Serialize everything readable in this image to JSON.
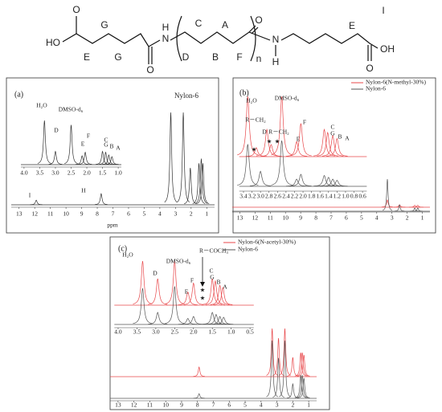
{
  "structure": {
    "labels": [
      "HO",
      "O",
      "G",
      "E",
      "G",
      "O",
      "N",
      "H",
      "C",
      "A",
      "D",
      "B",
      "F",
      "O",
      "n",
      "N",
      "H",
      "E",
      "I",
      "OH",
      "O"
    ]
  },
  "chart_data": [
    {
      "type": "nmr",
      "title": "(a)",
      "xlabel": "ppm",
      "xlim": [
        13.5,
        0.5
      ],
      "xticks": [
        13,
        12,
        11,
        10,
        9,
        8,
        7,
        6,
        5,
        4,
        3,
        2,
        1
      ],
      "ylim": [
        0,
        100
      ],
      "series": [
        {
          "name": "Nylon-6",
          "color": "#333333",
          "x": [
            11.9,
            7.75,
            3.3,
            2.5,
            2.05,
            1.5,
            1.35,
            1.25
          ],
          "values": [
            5,
            12,
            100,
            100,
            40,
            45,
            50,
            45
          ]
        }
      ],
      "annotations": [
        "I",
        "H"
      ],
      "inset": {
        "xlim": [
          4.1,
          0.9
        ],
        "xticks": [
          {
            "value": 4,
            "label": "4.0"
          },
          3.5,
          {
            "value": 3,
            "label": "3.0"
          },
          2.5,
          {
            "value": 2,
            "label": "2.0"
          },
          1.5,
          {
            "value": 1,
            "label": "1.0"
          }
        ],
        "series": [
          {
            "color": "#333333",
            "x": [
              3.35,
              3.0,
              2.5,
              2.15,
              2.05,
              1.5,
              1.4,
              1.3,
              1.2
            ],
            "values": [
              100,
              30,
              90,
              20,
              28,
              30,
              28,
              22,
              18
            ]
          }
        ],
        "annotations": [
          "H₂O",
          "DMSO-d₆",
          "D",
          "E",
          "F",
          "C",
          "G",
          "B",
          "A"
        ]
      }
    },
    {
      "type": "nmr",
      "title": "(b)",
      "xlim": [
        13.5,
        0.5
      ],
      "xticks": [
        13,
        12,
        11,
        10,
        9,
        8,
        7,
        6,
        5,
        4,
        3,
        2,
        1
      ],
      "ylim": [
        0,
        100
      ],
      "series": [
        {
          "name": "Nylon-6(N-methyl-30%)",
          "color": "#e8474a",
          "x": [
            3.3,
            2.5,
            1.5,
            1.3
          ],
          "values": [
            30,
            10,
            8,
            8
          ]
        },
        {
          "name": "Nylon-6",
          "color": "#555555",
          "x": [
            3.3,
            2.5,
            1.5,
            1.3
          ],
          "values": [
            100,
            20,
            10,
            10
          ]
        }
      ],
      "annotations": [],
      "inset": {
        "xlim": [
          3.5,
          0.5
        ],
        "xticks": [
          3.4,
          3.2,
          {
            "value": 3,
            "label": "3.0"
          },
          2.8,
          2.6,
          2.4,
          2.2,
          {
            "value": 2,
            "label": "2.0"
          },
          1.8,
          1.6,
          1.4,
          1.2,
          {
            "value": 1,
            "label": "1.0"
          },
          0.8,
          0.6
        ],
        "series": [
          {
            "color": "#e8474a",
            "x": [
              3.3,
              3.1,
              2.85,
              2.75,
              2.5,
              2.15,
              2.05,
              1.5,
              1.42,
              1.3,
              1.2
            ],
            "values": [
              100,
              15,
              45,
              20,
              100,
              25,
              55,
              45,
              40,
              35,
              30
            ]
          },
          {
            "color": "#555555",
            "x": [
              3.3,
              3.0,
              2.5,
              2.15,
              2.05,
              1.5,
              1.4,
              1.3,
              1.2
            ],
            "values": [
              70,
              25,
              76,
              12,
              20,
              18,
              15,
              12,
              10
            ]
          }
        ],
        "annotations": [
          "H₂O",
          "DMSO-d₆",
          "R－CH₂",
          "D",
          "R－CH₂",
          "★",
          "★",
          "★",
          "E",
          "F",
          "C",
          "G",
          "B",
          "A"
        ]
      }
    },
    {
      "type": "nmr",
      "title": "(c)",
      "xlim": [
        13.5,
        0.5
      ],
      "xticks": [
        13,
        12,
        11,
        10,
        9,
        8,
        7,
        6,
        5,
        4,
        3,
        2,
        1
      ],
      "ylim": [
        0,
        100
      ],
      "series": [
        {
          "name": "Nylon-6(N-acetyl-30%)",
          "color": "#e8474a",
          "x": [
            7.9,
            3.3,
            2.9,
            2.5,
            2.0,
            1.5,
            1.4,
            1.3
          ],
          "values": [
            20,
            100,
            80,
            100,
            40,
            50,
            50,
            45
          ]
        },
        {
          "name": "Nylon-6",
          "color": "#555555",
          "x": [
            7.9,
            3.3,
            2.9,
            2.5,
            2.0,
            1.5,
            1.4,
            1.3
          ],
          "values": [
            8,
            100,
            70,
            100,
            25,
            40,
            40,
            35
          ]
        }
      ],
      "annotations": [],
      "inset": {
        "xlim": [
          4.1,
          0.4
        ],
        "xticks": [
          {
            "value": 4,
            "label": "4.0"
          },
          3.5,
          {
            "value": 3,
            "label": "3.0"
          },
          2.5,
          {
            "value": 2,
            "label": "2.0"
          },
          1.5,
          {
            "value": 1,
            "label": "1.0"
          },
          0.5
        ],
        "series": [
          {
            "color": "#e8474a",
            "x": [
              3.35,
              2.95,
              2.5,
              2.15,
              2.0,
              1.5,
              1.42,
              1.3,
              1.22
            ],
            "values": [
              100,
              60,
              100,
              30,
              50,
              60,
              55,
              45,
              40
            ]
          },
          {
            "color": "#555555",
            "x": [
              3.35,
              2.95,
              2.5,
              2.15,
              2.0,
              1.5,
              1.4,
              1.3,
              1.2
            ],
            "values": [
              90,
              30,
              95,
              15,
              20,
              30,
              25,
              20,
              18
            ]
          }
        ],
        "annotations": [
          "H₂O",
          "DMSO-d₆",
          "R－COCH₃",
          "D",
          "E",
          "F",
          "C",
          "G",
          "B",
          "A",
          "★",
          "★"
        ]
      }
    }
  ]
}
